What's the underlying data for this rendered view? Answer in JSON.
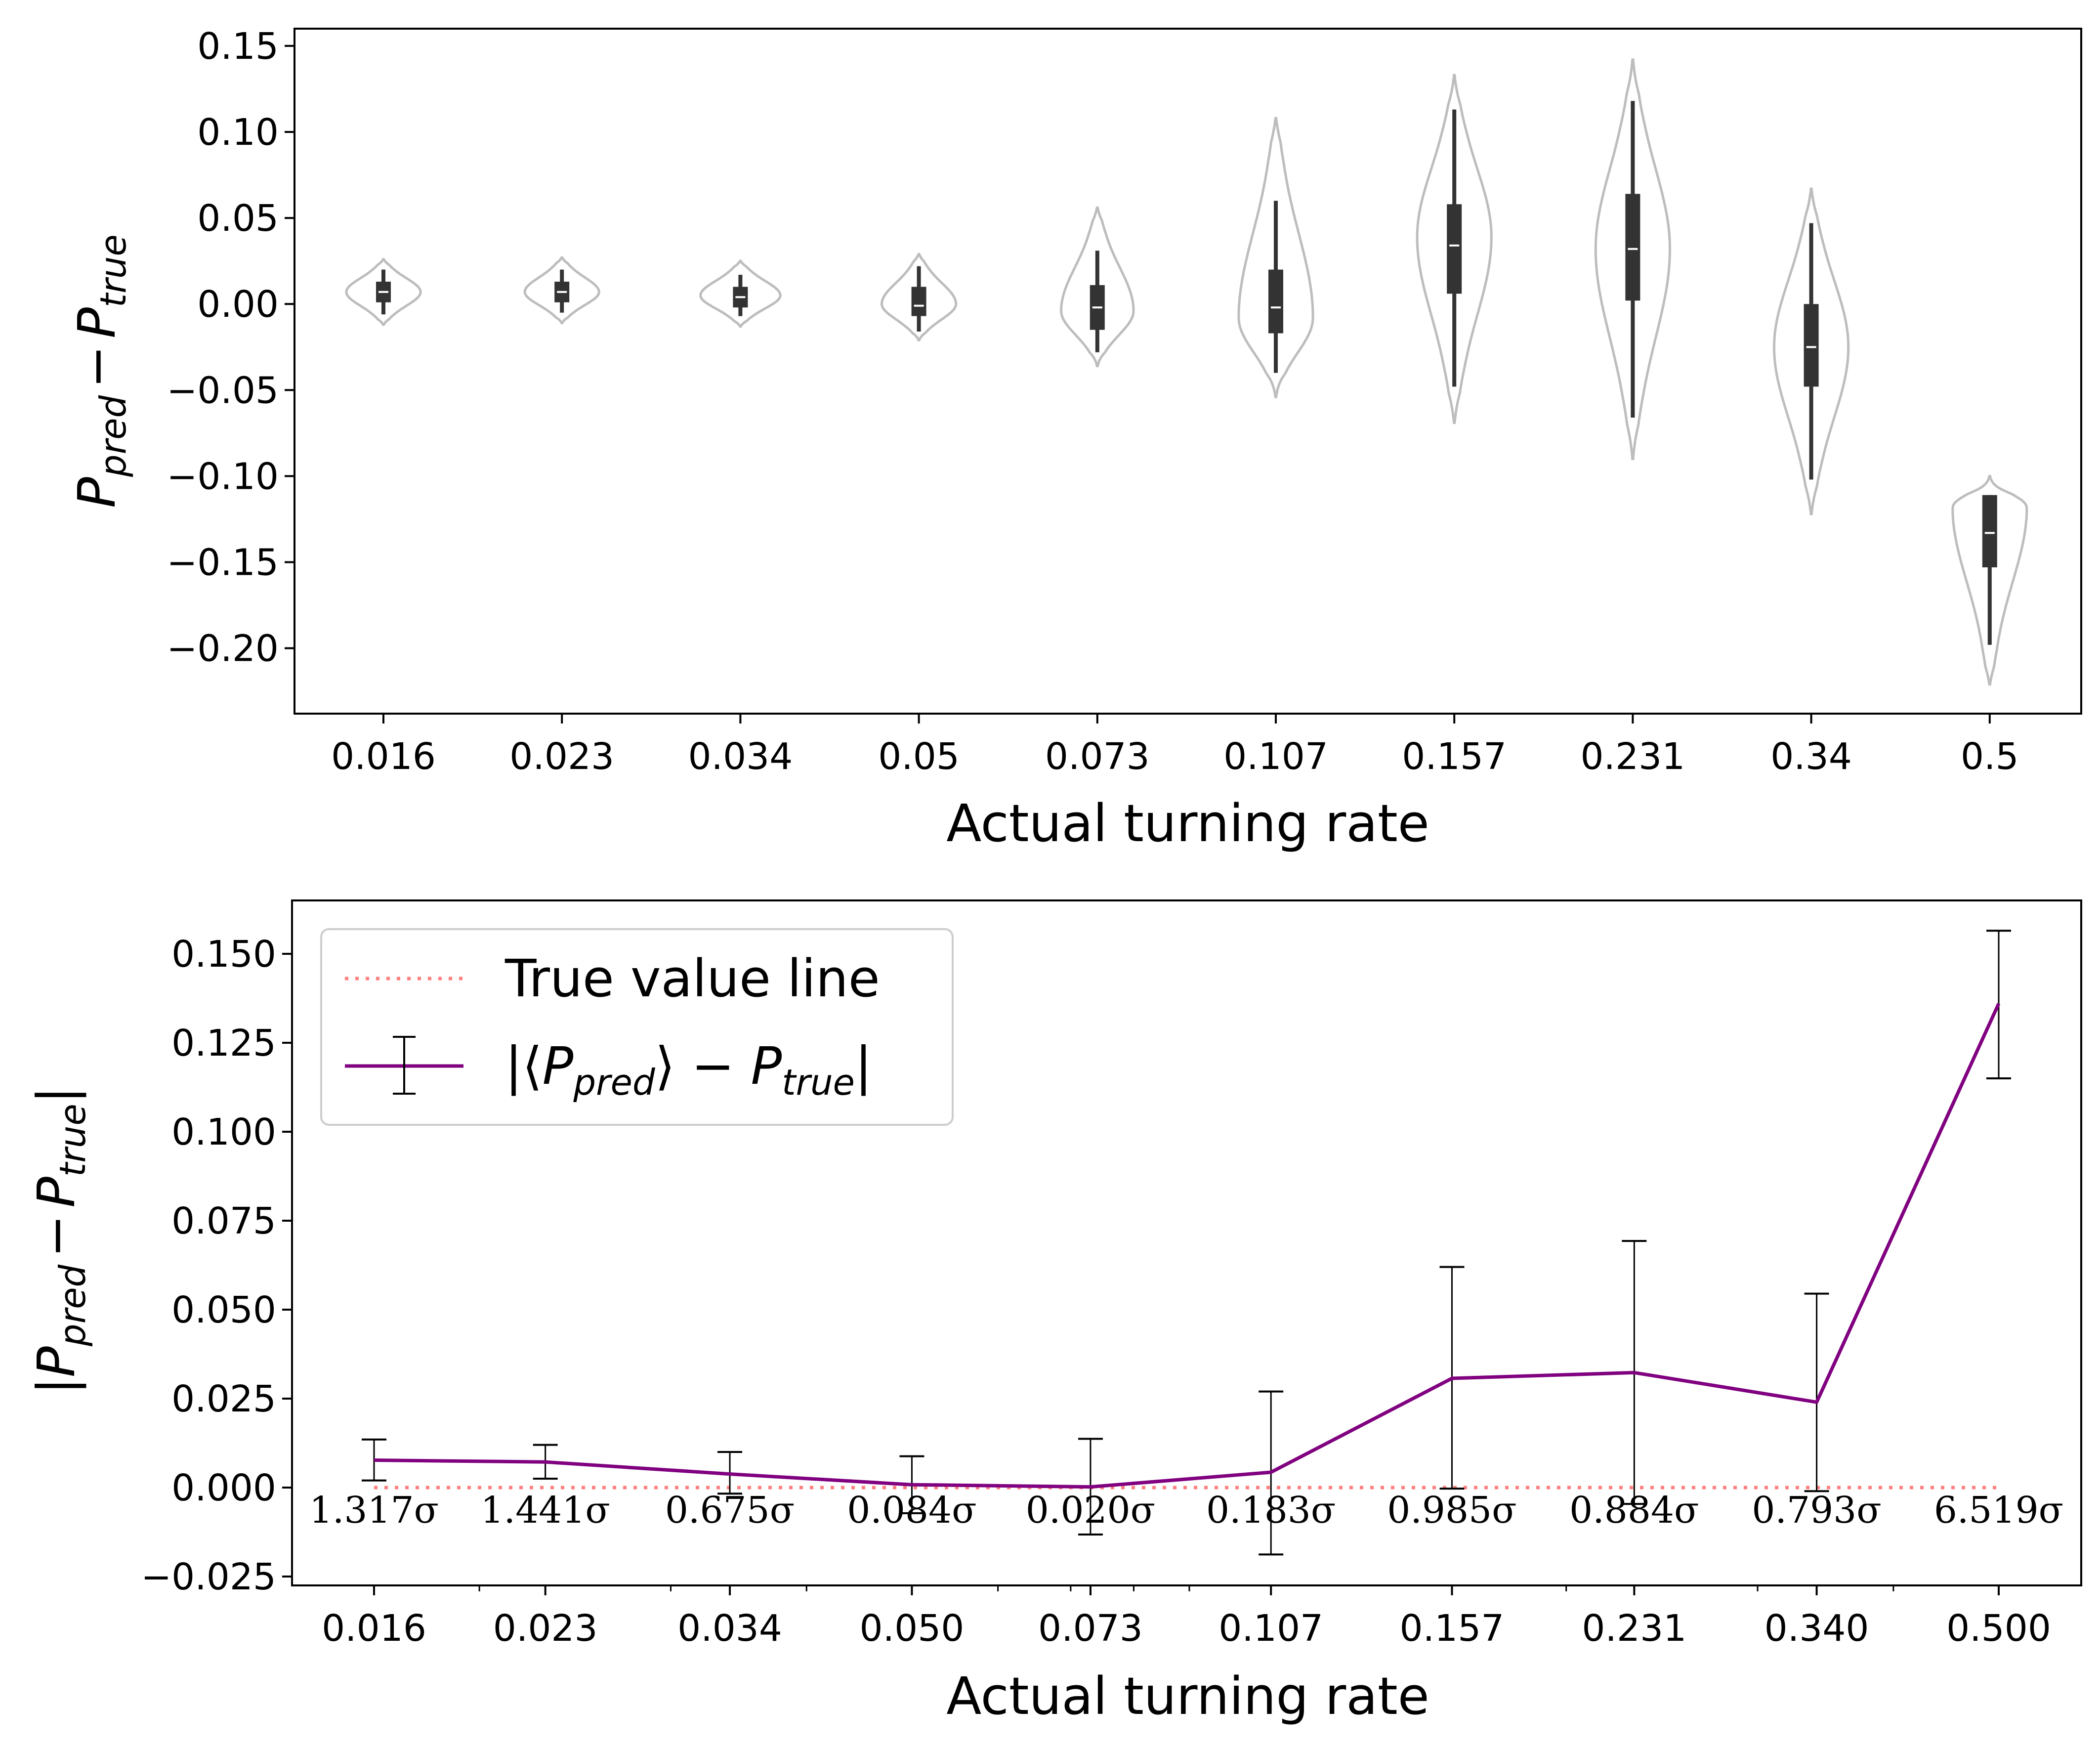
{
  "chart_data": [
    {
      "type": "violin",
      "xlabel": "Actual turning rate",
      "ylabel": {
        "main": "P",
        "sub1": "pred",
        "minus": "−",
        "main2": "P",
        "sub2": "true"
      },
      "categories": [
        "0.016",
        "0.023",
        "0.034",
        "0.05",
        "0.073",
        "0.107",
        "0.157",
        "0.231",
        "0.34",
        "0.5"
      ],
      "ylim": [
        -0.238,
        0.16
      ],
      "yticks": [
        {
          "v": 0.15,
          "label": "0.15"
        },
        {
          "v": 0.1,
          "label": "0.10"
        },
        {
          "v": 0.05,
          "label": "0.05"
        },
        {
          "v": 0.0,
          "label": "0.00"
        },
        {
          "v": -0.05,
          "label": "−0.05"
        },
        {
          "v": -0.1,
          "label": "−0.10"
        },
        {
          "v": -0.15,
          "label": "−0.15"
        },
        {
          "v": -0.2,
          "label": "−0.20"
        }
      ],
      "violin_color": "#bdbdbd",
      "box_color": "#333333",
      "distributions": [
        {
          "min": -0.012,
          "max": 0.026,
          "mode": 0.007,
          "width": 0.4,
          "whisker": [
            -0.006,
            0.02
          ],
          "q1": 0.001,
          "q3": 0.013,
          "median": 0.007
        },
        {
          "min": -0.011,
          "max": 0.027,
          "mode": 0.007,
          "width": 0.4,
          "whisker": [
            -0.005,
            0.02
          ],
          "q1": 0.001,
          "q3": 0.013,
          "median": 0.007
        },
        {
          "min": -0.013,
          "max": 0.025,
          "mode": 0.005,
          "width": 0.43,
          "whisker": [
            -0.007,
            0.017
          ],
          "q1": -0.002,
          "q3": 0.01,
          "median": 0.004
        },
        {
          "min": -0.021,
          "max": 0.029,
          "mode": 0.0,
          "width": 0.4,
          "whisker": [
            -0.016,
            0.022
          ],
          "q1": -0.007,
          "q3": 0.01,
          "median": -0.001
        },
        {
          "min": -0.036,
          "max": 0.056,
          "mode": -0.004,
          "width": 0.39,
          "whisker": [
            -0.028,
            0.031
          ],
          "q1": -0.015,
          "q3": 0.011,
          "median": -0.002
        },
        {
          "min": -0.054,
          "max": 0.108,
          "mode": -0.008,
          "width": 0.4,
          "whisker": [
            -0.04,
            0.06
          ],
          "q1": -0.017,
          "q3": 0.02,
          "median": -0.002
        },
        {
          "min": -0.069,
          "max": 0.133,
          "mode": 0.039,
          "width": 0.4,
          "whisker": [
            -0.048,
            0.113
          ],
          "q1": 0.006,
          "q3": 0.058,
          "median": 0.034
        },
        {
          "min": -0.09,
          "max": 0.142,
          "mode": 0.032,
          "width": 0.4,
          "whisker": [
            -0.066,
            0.118
          ],
          "q1": 0.002,
          "q3": 0.064,
          "median": 0.032
        },
        {
          "min": -0.122,
          "max": 0.067,
          "mode": -0.025,
          "width": 0.4,
          "whisker": [
            -0.102,
            0.047
          ],
          "q1": -0.048,
          "q3": 0.0,
          "median": -0.025
        },
        {
          "min": -0.221,
          "max": -0.1,
          "mode": -0.118,
          "width": 0.4,
          "whisker": [
            -0.198,
            -0.111
          ],
          "q1": -0.153,
          "q3": -0.111,
          "median": -0.133
        }
      ]
    },
    {
      "type": "line",
      "xlabel": "Actual turning rate",
      "ylabel": {
        "bar": "|",
        "main": "P",
        "sub1": "pred",
        "minus": "−",
        "main2": "P",
        "sub2": "true",
        "bar2": "|"
      },
      "x": [
        0.016,
        0.023,
        0.034,
        0.05,
        0.073,
        0.107,
        0.157,
        0.231,
        0.34,
        0.5
      ],
      "xtick_labels": [
        "0.016",
        "0.023",
        "0.034",
        "0.050",
        "0.073",
        "0.107",
        "0.157",
        "0.231",
        "0.340",
        "0.500"
      ],
      "x_scale": "log",
      "ylim": [
        -0.0275,
        0.165
      ],
      "yticks": [
        {
          "v": 0.15,
          "label": "0.150"
        },
        {
          "v": 0.125,
          "label": "0.125"
        },
        {
          "v": 0.1,
          "label": "0.100"
        },
        {
          "v": 0.075,
          "label": "0.075"
        },
        {
          "v": 0.05,
          "label": "0.050"
        },
        {
          "v": 0.025,
          "label": "0.025"
        },
        {
          "v": 0.0,
          "label": "0.000"
        },
        {
          "v": -0.025,
          "label": "−0.025"
        }
      ],
      "series": [
        {
          "name": "|⟨Ppred⟩ − Ptrue|",
          "color": "#800080",
          "values": [
            0.0077,
            0.0072,
            0.0038,
            0.0008,
            0.0002,
            0.0043,
            0.0307,
            0.0323,
            0.024,
            0.136
          ],
          "err_low": [
            0.002,
            0.0025,
            -0.0017,
            -0.0072,
            -0.0132,
            -0.0188,
            -0.0003,
            -0.0046,
            -0.001,
            0.115
          ],
          "err_high": [
            0.0135,
            0.012,
            0.01,
            0.0088,
            0.0137,
            0.027,
            0.062,
            0.0693,
            0.0545,
            0.1565
          ]
        },
        {
          "name": "True value line",
          "color": "#ff7f7f",
          "values": [
            0,
            0,
            0,
            0,
            0,
            0,
            0,
            0,
            0,
            0
          ]
        }
      ],
      "sigma_labels": [
        "1.317σ",
        "1.441σ",
        "0.675σ",
        "0.084σ",
        "0.020σ",
        "0.183σ",
        "0.985σ",
        "0.884σ",
        "0.793σ",
        "6.519σ"
      ],
      "legend": {
        "placement": "top-left",
        "entries": [
          {
            "label": "True value line"
          },
          {
            "label_parts": [
              "|⟨",
              "P",
              "pred",
              "⟩ − ",
              "P",
              "true",
              "|"
            ]
          }
        ]
      }
    }
  ]
}
